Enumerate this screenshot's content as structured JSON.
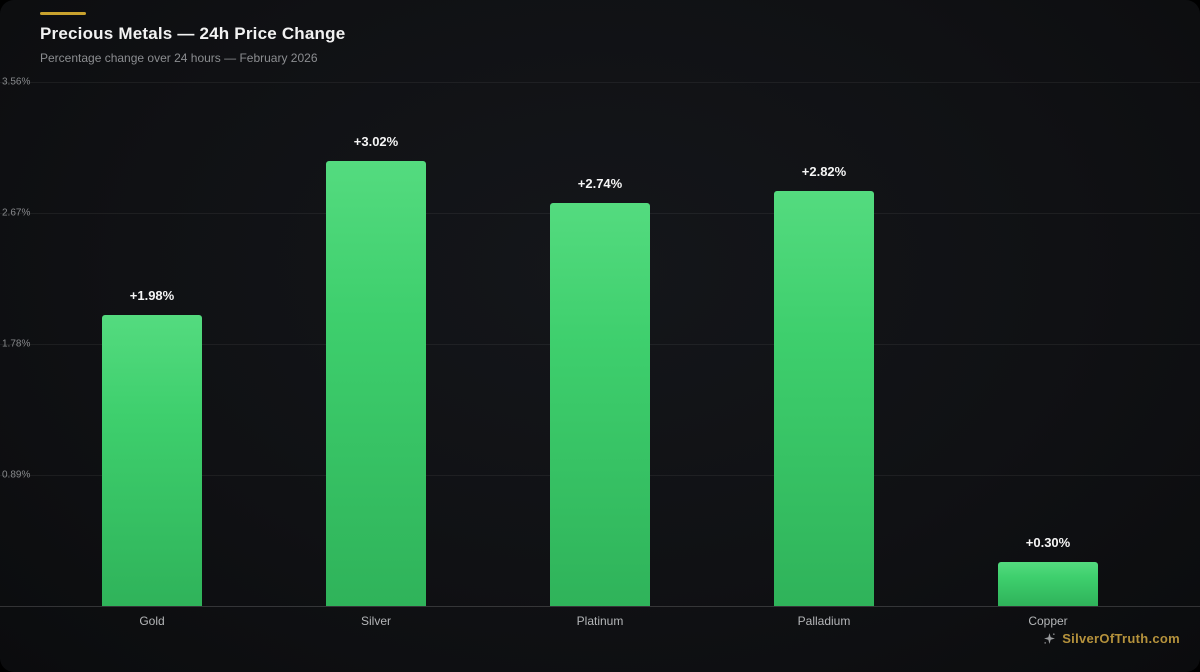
{
  "header": {
    "title": "Precious Metals — 24h Price Change",
    "subtitle": "Percentage change over 24 hours — February 2026"
  },
  "watermark": {
    "text": "SilverOfTruth.com"
  },
  "colors": {
    "accent_gold": "#c9a22e",
    "bar_green_top": "#54db7f",
    "bar_green_bottom": "#2fb35a",
    "background": "#101114"
  },
  "chart_data": {
    "type": "bar",
    "title": "Precious Metals — 24h Price Change",
    "subtitle": "Percentage change over 24 hours — February 2026",
    "categories": [
      "Gold",
      "Silver",
      "Platinum",
      "Palladium",
      "Copper"
    ],
    "values": [
      1.98,
      3.02,
      2.74,
      2.82,
      0.3
    ],
    "value_labels": [
      "+1.98%",
      "+3.02%",
      "+2.74%",
      "+2.82%",
      "+0.30%"
    ],
    "xlabel": "",
    "ylabel": "",
    "ylim": [
      0,
      3.56
    ],
    "yticks": [
      {
        "value": 0.89,
        "label": "0.89%"
      },
      {
        "value": 1.78,
        "label": "1.78%"
      },
      {
        "value": 2.67,
        "label": "2.67%"
      },
      {
        "value": 3.56,
        "label": "3.56%"
      }
    ],
    "grid": true,
    "legend": false
  }
}
